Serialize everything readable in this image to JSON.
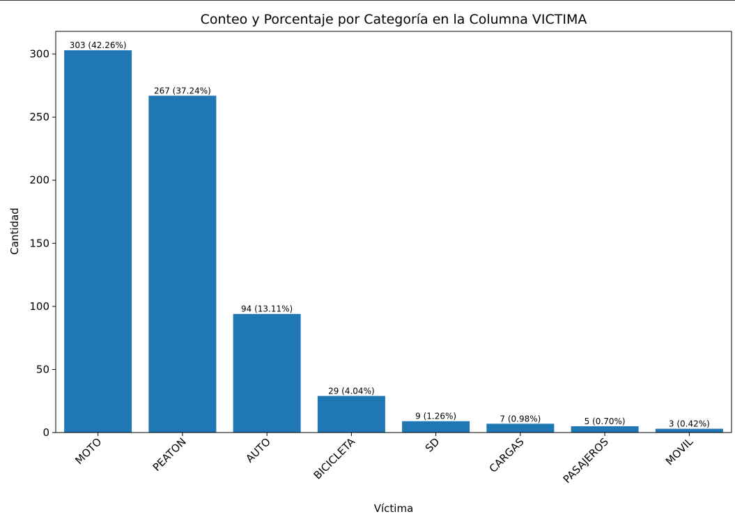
{
  "chart_data": {
    "type": "bar",
    "title": "Conteo y Porcentaje por Categoría en la Columna VICTIMA",
    "xlabel": "Víctima",
    "ylabel": "Cantidad",
    "categories": [
      "MOTO",
      "PEATON",
      "AUTO",
      "BICICLETA",
      "SD",
      "CARGAS",
      "PASAJEROS",
      "MOVIL"
    ],
    "values": [
      303,
      267,
      94,
      29,
      9,
      7,
      5,
      3
    ],
    "data_labels": [
      "303 (42.26%)",
      "267 (37.24%)",
      "94 (13.11%)",
      "29 (4.04%)",
      "9 (1.26%)",
      "7 (0.98%)",
      "5 (0.70%)",
      "3 (0.42%)"
    ],
    "ylim": [
      0,
      318
    ],
    "yticks": [
      0,
      50,
      100,
      150,
      200,
      250,
      300
    ],
    "grid": false,
    "bar_color": "#1f77b4"
  }
}
